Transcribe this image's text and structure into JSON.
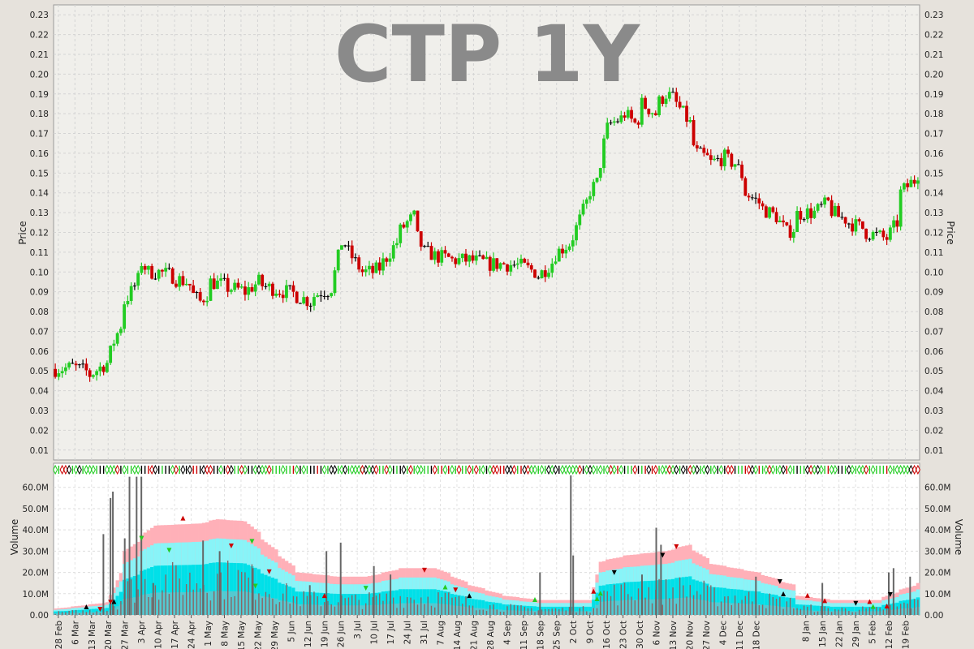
{
  "chart_data": [
    {
      "type": "ohlc",
      "title": "CTP 1Y",
      "ylabel": "Price",
      "ylim": [
        0.005,
        0.235
      ],
      "yticks": [
        0.01,
        0.02,
        0.03,
        0.04,
        0.05,
        0.06,
        0.07,
        0.08,
        0.09,
        0.1,
        0.11,
        0.12,
        0.13,
        0.14,
        0.15,
        0.16,
        0.17,
        0.18,
        0.19,
        0.2,
        0.21,
        0.22,
        0.23
      ],
      "grid": true,
      "colors": {
        "up": "#22cc22",
        "down": "#cc0000",
        "neutral": "#000000",
        "plot_bg": "#f0efeb",
        "grid": "#d4d4d4"
      },
      "price_path": [
        [
          "2024-02-26",
          0.051
        ],
        [
          "2024-03-04",
          0.052
        ],
        [
          "2024-03-11",
          0.048
        ],
        [
          "2024-03-15",
          0.053
        ],
        [
          "2024-03-18",
          0.054
        ],
        [
          "2024-03-20",
          0.065
        ],
        [
          "2024-03-25",
          0.085
        ],
        [
          "2024-03-27",
          0.09
        ],
        [
          "2024-04-01",
          0.105
        ],
        [
          "2024-04-03",
          0.1
        ],
        [
          "2024-04-08",
          0.1
        ],
        [
          "2024-04-12",
          0.098
        ],
        [
          "2024-04-18",
          0.095
        ],
        [
          "2024-04-24",
          0.085
        ],
        [
          "2024-04-29",
          0.095
        ],
        [
          "2024-05-06",
          0.092
        ],
        [
          "2024-05-13",
          0.09
        ],
        [
          "2024-05-17",
          0.095
        ],
        [
          "2024-05-22",
          0.092
        ],
        [
          "2024-05-29",
          0.09
        ],
        [
          "2024-06-03",
          0.088
        ],
        [
          "2024-06-07",
          0.085
        ],
        [
          "2024-06-12",
          0.09
        ],
        [
          "2024-06-17",
          0.092
        ],
        [
          "2024-06-20",
          0.115
        ],
        [
          "2024-06-24",
          0.11
        ],
        [
          "2024-06-28",
          0.1
        ],
        [
          "2024-07-03",
          0.1
        ],
        [
          "2024-07-08",
          0.105
        ],
        [
          "2024-07-12",
          0.115
        ],
        [
          "2024-07-17",
          0.125
        ],
        [
          "2024-07-19",
          0.128
        ],
        [
          "2024-07-24",
          0.11
        ],
        [
          "2024-07-29",
          0.108
        ],
        [
          "2024-08-05",
          0.106
        ],
        [
          "2024-08-12",
          0.106
        ],
        [
          "2024-08-19",
          0.104
        ],
        [
          "2024-08-26",
          0.104
        ],
        [
          "2024-09-02",
          0.103
        ],
        [
          "2024-09-09",
          0.098
        ],
        [
          "2024-09-13",
          0.105
        ],
        [
          "2024-09-18",
          0.112
        ],
        [
          "2024-09-23",
          0.118
        ],
        [
          "2024-09-27",
          0.135
        ],
        [
          "2024-10-02",
          0.145
        ],
        [
          "2024-10-04",
          0.165
        ],
        [
          "2024-10-08",
          0.175
        ],
        [
          "2024-10-14",
          0.18
        ],
        [
          "2024-10-17",
          0.175
        ],
        [
          "2024-10-21",
          0.185
        ],
        [
          "2024-10-25",
          0.18
        ],
        [
          "2024-10-30",
          0.19
        ],
        [
          "2024-11-04",
          0.185
        ],
        [
          "2024-11-08",
          0.175
        ],
        [
          "2024-11-12",
          0.16
        ],
        [
          "2024-11-18",
          0.155
        ],
        [
          "2024-11-22",
          0.158
        ],
        [
          "2024-11-27",
          0.155
        ],
        [
          "2024-12-02",
          0.14
        ],
        [
          "2024-12-06",
          0.135
        ],
        [
          "2024-12-11",
          0.13
        ],
        [
          "2024-12-16",
          0.125
        ],
        [
          "2024-12-18",
          0.12
        ],
        [
          "2024-12-23",
          0.125
        ],
        [
          "2025-01-03",
          0.128
        ],
        [
          "2025-01-08",
          0.13
        ],
        [
          "2025-01-13",
          0.13
        ],
        [
          "2025-01-17",
          0.135
        ],
        [
          "2025-01-22",
          0.128
        ],
        [
          "2025-01-27",
          0.125
        ],
        [
          "2025-02-03",
          0.12
        ],
        [
          "2025-02-07",
          0.118
        ],
        [
          "2025-02-11",
          0.117
        ],
        [
          "2025-02-14",
          0.125
        ],
        [
          "2025-02-17",
          0.14
        ],
        [
          "2025-02-20",
          0.145
        ],
        [
          "2025-02-24",
          0.15
        ]
      ]
    },
    {
      "type": "bar",
      "ylabel": "Volume",
      "ylim": [
        0,
        66
      ],
      "yticks": [
        0,
        10,
        20,
        30,
        40,
        50,
        60
      ],
      "ytick_labels": [
        "0.00",
        "10.0M",
        "20.0M",
        "30.0M",
        "40.0M",
        "50.0M",
        "60.0M"
      ],
      "x_tick_labels": [
        "28 Feb",
        "6 Mar",
        "13 Mar",
        "20 Mar",
        "27 Mar",
        "3 Apr",
        "10 Apr",
        "17 Apr",
        "24 Apr",
        "1 May",
        "8 May",
        "15 May",
        "22 May",
        "29 May",
        "5 Jun",
        "12 Jun",
        "19 Jun",
        "26 Jun",
        "3 Jul",
        "10 Jul",
        "17 Jul",
        "24 Jul",
        "31 Jul",
        "7 Aug",
        "14 Aug",
        "21 Aug",
        "28 Aug",
        "4 Sep",
        "11 Sep",
        "18 Sep",
        "25 Sep",
        "2 Oct",
        "9 Oct",
        "16 Oct",
        "23 Oct",
        "30 Oct",
        "6 Nov",
        "13 Nov",
        "20 Nov",
        "27 Nov",
        "4 Dec",
        "11 Dec",
        "18 Dec",
        "8 Jan",
        "15 Jan",
        "22 Jan",
        "29 Jan",
        "5 Feb",
        "12 Feb",
        "19 Feb"
      ],
      "x_tick_dates": [
        "2024-02-28",
        "2024-03-06",
        "2024-03-13",
        "2024-03-20",
        "2024-03-27",
        "2024-04-03",
        "2024-04-10",
        "2024-04-17",
        "2024-04-24",
        "2024-05-01",
        "2024-05-08",
        "2024-05-15",
        "2024-05-22",
        "2024-05-29",
        "2024-06-05",
        "2024-06-12",
        "2024-06-19",
        "2024-06-26",
        "2024-07-03",
        "2024-07-10",
        "2024-07-17",
        "2024-07-24",
        "2024-07-31",
        "2024-08-07",
        "2024-08-14",
        "2024-08-21",
        "2024-08-28",
        "2024-09-04",
        "2024-09-11",
        "2024-09-18",
        "2024-09-25",
        "2024-10-02",
        "2024-10-09",
        "2024-10-16",
        "2024-10-23",
        "2024-10-30",
        "2024-11-06",
        "2024-11-13",
        "2024-11-20",
        "2024-11-27",
        "2024-12-04",
        "2024-12-11",
        "2024-12-18",
        "2025-01-08",
        "2025-01-15",
        "2025-01-22",
        "2025-01-29",
        "2025-02-05",
        "2025-02-12",
        "2025-02-19"
      ],
      "spikes": [
        [
          "2024-03-18",
          38
        ],
        [
          "2024-03-21",
          55
        ],
        [
          "2024-03-22",
          58
        ],
        [
          "2024-03-27",
          36
        ],
        [
          "2024-03-29",
          65
        ],
        [
          "2024-04-01",
          65
        ],
        [
          "2024-04-03",
          65
        ],
        [
          "2024-04-08",
          15
        ],
        [
          "2024-04-29",
          35
        ],
        [
          "2024-05-06",
          30
        ],
        [
          "2024-05-20",
          22
        ],
        [
          "2024-06-13",
          14
        ],
        [
          "2024-06-20",
          30
        ],
        [
          "2024-06-26",
          34
        ],
        [
          "2024-07-10",
          23
        ],
        [
          "2024-07-17",
          19
        ],
        [
          "2024-09-18",
          20
        ],
        [
          "2024-10-01",
          66
        ],
        [
          "2024-10-02",
          28
        ],
        [
          "2024-10-31",
          19
        ],
        [
          "2024-11-06",
          41
        ],
        [
          "2024-11-08",
          33
        ],
        [
          "2024-12-18",
          18
        ],
        [
          "2025-01-15",
          15
        ],
        [
          "2025-02-12",
          20
        ],
        [
          "2025-02-14",
          22
        ],
        [
          "2025-02-21",
          18
        ]
      ],
      "envelope": [
        [
          "2024-02-26",
          3
        ],
        [
          "2024-03-18",
          6
        ],
        [
          "2024-03-25",
          30
        ],
        [
          "2024-04-05",
          42
        ],
        [
          "2024-04-24",
          43
        ],
        [
          "2024-05-01",
          45
        ],
        [
          "2024-05-13",
          44
        ],
        [
          "2024-05-22",
          33
        ],
        [
          "2024-06-03",
          20
        ],
        [
          "2024-06-19",
          18
        ],
        [
          "2024-07-01",
          18
        ],
        [
          "2024-07-15",
          22
        ],
        [
          "2024-07-29",
          22
        ],
        [
          "2024-08-12",
          14
        ],
        [
          "2024-08-26",
          9
        ],
        [
          "2024-09-09",
          7
        ],
        [
          "2024-09-30",
          7
        ],
        [
          "2024-10-03",
          25
        ],
        [
          "2024-10-14",
          28
        ],
        [
          "2024-10-30",
          30
        ],
        [
          "2024-11-08",
          33
        ],
        [
          "2024-11-18",
          24
        ],
        [
          "2024-12-06",
          20
        ],
        [
          "2024-12-18",
          15
        ],
        [
          "2025-01-06",
          9
        ],
        [
          "2025-01-20",
          7
        ],
        [
          "2025-02-07",
          7
        ],
        [
          "2025-02-17",
          12
        ],
        [
          "2025-02-24",
          15
        ]
      ],
      "colors": {
        "avg_outer": "#ffb0b8",
        "avg_mid": "#88f4f8",
        "avg_inner": "#00e0e8",
        "bar": "#886666",
        "spike": "#666666"
      }
    }
  ]
}
